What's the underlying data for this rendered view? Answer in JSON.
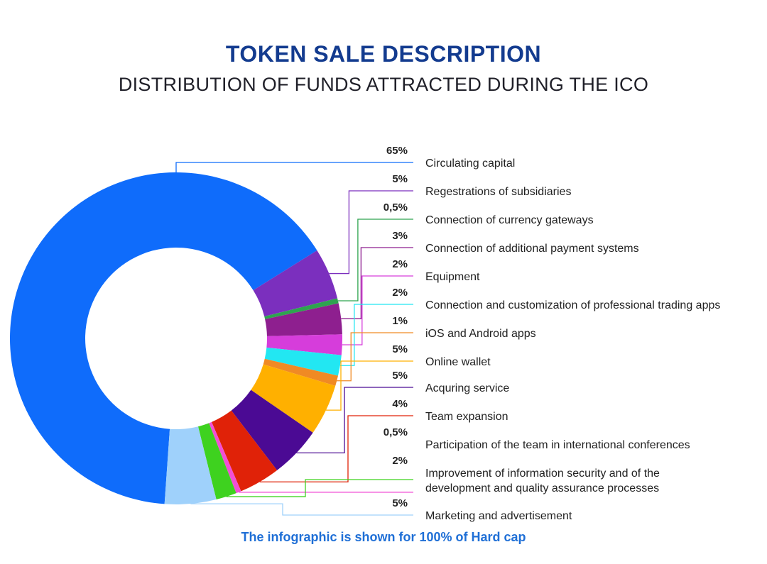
{
  "header": {
    "title": "TOKEN SALE DESCRIPTION",
    "subtitle": "DISTRIBUTION OF FUNDS ATTRACTED DURING THE ICO"
  },
  "footer": {
    "note": "The infographic is shown for 100% of Hard cap"
  },
  "chart_data": {
    "type": "pie",
    "title": "TOKEN SALE DESCRIPTION",
    "subtitle": "DISTRIBUTION OF FUNDS ATTRACTED DURING THE ICO",
    "legend_placement": "right",
    "slices": [
      {
        "label": "Circulating capital",
        "value": 65,
        "value_label": "65%",
        "color": "#0f6cfb"
      },
      {
        "label": "Regestrations of subsidiaries",
        "value": 5,
        "value_label": "5%",
        "color": "#7b2fbe"
      },
      {
        "label": "Connection of currency gateways",
        "value": 0.5,
        "value_label": "0,5%",
        "color": "#2ea44f"
      },
      {
        "label": "Connection of additional payment systems",
        "value": 3,
        "value_label": "3%",
        "color": "#8e1f8f"
      },
      {
        "label": "Equipment",
        "value": 2,
        "value_label": "2%",
        "color": "#d63ddb"
      },
      {
        "label": "Connection and customization of professional trading apps",
        "value": 2,
        "value_label": "2%",
        "color": "#22e7f2"
      },
      {
        "label": "iOS and Android apps",
        "value": 1,
        "value_label": "1%",
        "color": "#f08a24"
      },
      {
        "label": "Online wallet",
        "value": 5,
        "value_label": "5%",
        "color": "#ffb000"
      },
      {
        "label": "Acquring service",
        "value": 5,
        "value_label": "5%",
        "color": "#4b0a94"
      },
      {
        "label": "Team expansion",
        "value": 4,
        "value_label": "4%",
        "color": "#e02208"
      },
      {
        "label": "Participation of the team in international conferences",
        "value": 0.5,
        "value_label": "0,5%",
        "color": "#f24fd6"
      },
      {
        "label": "Improvement of information security and of the development and quality assurance processes",
        "value": 2,
        "value_label": "2%",
        "color": "#3ed21f"
      },
      {
        "label": "Marketing and advertisement",
        "value": 5,
        "value_label": "5%",
        "color": "#9fd1fb"
      }
    ]
  }
}
